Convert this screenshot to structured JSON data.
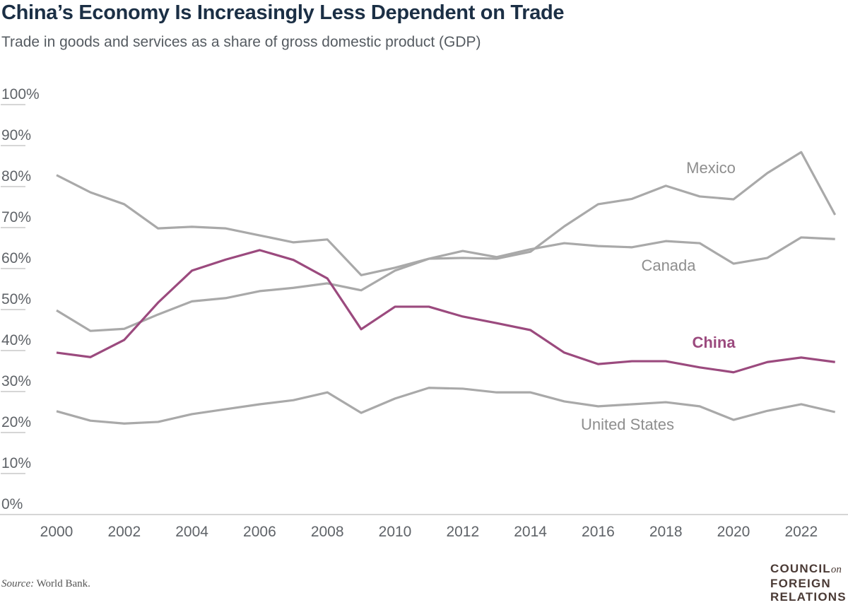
{
  "header": {
    "title": "China’s Economy Is Increasingly Less Dependent on Trade",
    "subtitle": "Trade in goods and services as a share of gross domestic product (GDP)"
  },
  "footer": {
    "source_label": "Source:",
    "source_text": "World Bank.",
    "logo_text": "COUNCIL on FOREIGN RELATIONS"
  },
  "chart_data": {
    "type": "line",
    "title": "China’s Economy Is Increasingly Less Dependent on Trade",
    "subtitle": "Trade in goods and services as a share of gross domestic product (GDP)",
    "xlabel": "",
    "ylabel": "",
    "ylim": [
      0,
      100
    ],
    "xlim": [
      2000,
      2023
    ],
    "grid": false,
    "y_ticks": [
      "0%",
      "10%",
      "20%",
      "30%",
      "40%",
      "50%",
      "60%",
      "70%",
      "80%",
      "90%",
      "100%"
    ],
    "x_ticks": [
      "2000",
      "2002",
      "2004",
      "2006",
      "2008",
      "2010",
      "2012",
      "2014",
      "2016",
      "2018",
      "2020",
      "2022"
    ],
    "x": [
      2000,
      2001,
      2002,
      2003,
      2004,
      2005,
      2006,
      2007,
      2008,
      2009,
      2010,
      2011,
      2012,
      2013,
      2014,
      2015,
      2016,
      2017,
      2018,
      2019,
      2020,
      2021,
      2022,
      2023
    ],
    "series": [
      {
        "name": "Canada",
        "color": "#a9a9a9",
        "highlight": false,
        "values": [
          82.8,
          78.6,
          75.7,
          69.8,
          70.2,
          69.8,
          68.1,
          66.4,
          67.1,
          58.4,
          60.2,
          62.4,
          64.3,
          62.8,
          64.7,
          66.2,
          65.5,
          65.2,
          66.7,
          66.2,
          61.2,
          62.6,
          67.6,
          67.2
        ]
      },
      {
        "name": "Mexico",
        "color": "#a9a9a9",
        "highlight": false,
        "values": [
          49.8,
          44.8,
          45.3,
          48.8,
          52.0,
          52.8,
          54.5,
          55.3,
          56.4,
          54.7,
          59.5,
          62.4,
          62.6,
          62.4,
          64.1,
          70.3,
          75.7,
          77.0,
          80.2,
          77.6,
          76.9,
          83.3,
          88.4,
          73.1
        ]
      },
      {
        "name": "China",
        "color": "#9b4a7e",
        "highlight": true,
        "values": [
          39.5,
          38.4,
          42.6,
          51.7,
          59.5,
          62.2,
          64.5,
          62.1,
          57.6,
          45.2,
          50.7,
          50.7,
          48.3,
          46.7,
          45.0,
          39.5,
          36.7,
          37.4,
          37.4,
          35.9,
          34.7,
          37.2,
          38.3,
          37.2
        ]
      },
      {
        "name": "United States",
        "color": "#a9a9a9",
        "highlight": false,
        "values": [
          25.2,
          22.9,
          22.2,
          22.6,
          24.5,
          25.7,
          26.9,
          27.9,
          29.8,
          24.8,
          28.3,
          30.9,
          30.7,
          29.8,
          29.8,
          27.6,
          26.4,
          26.9,
          27.4,
          26.4,
          23.1,
          25.3,
          26.9,
          25.0
        ]
      }
    ]
  }
}
